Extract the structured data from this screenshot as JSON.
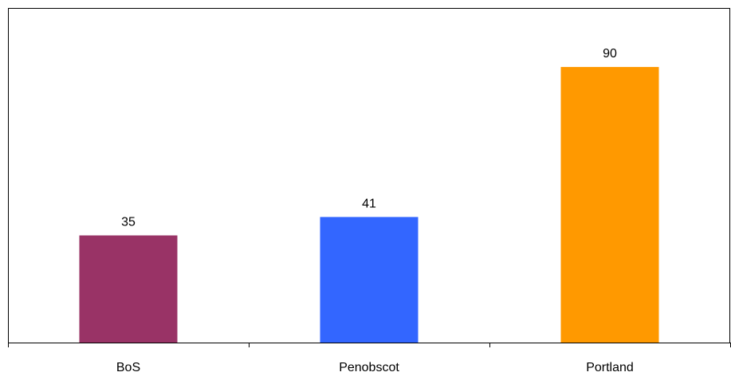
{
  "chart_data": {
    "type": "bar",
    "categories": [
      "BoS",
      "Penobscot",
      "Portland"
    ],
    "values": [
      35,
      41,
      90
    ],
    "bar_colors": [
      "#993366",
      "#3366FF",
      "#FF9900"
    ],
    "data_labels": [
      "35",
      "41",
      "90"
    ],
    "title": "",
    "xlabel": "",
    "ylabel": "",
    "ylim": [
      0,
      100
    ],
    "grid": false,
    "legend": "none"
  }
}
